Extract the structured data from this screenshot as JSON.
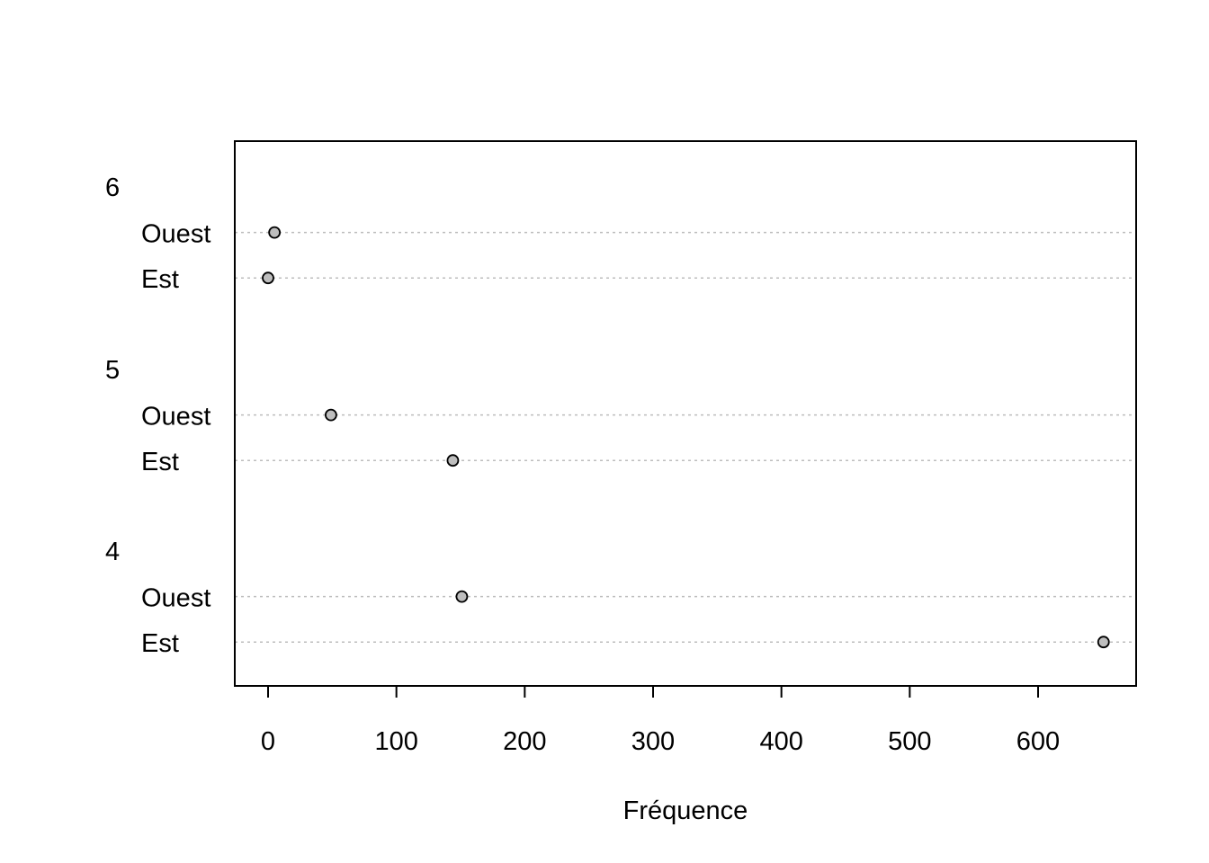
{
  "chart_data": {
    "type": "scatter",
    "xlabel": "Fréquence",
    "xlim": [
      -25,
      675
    ],
    "xticks": [
      0,
      100,
      200,
      300,
      400,
      500,
      600
    ],
    "grid": false,
    "point_color": "#bebebe",
    "groups": [
      {
        "label": "6",
        "rows": [
          {
            "label": "Ouest",
            "value": 5
          },
          {
            "label": "Est",
            "value": 0
          }
        ]
      },
      {
        "label": "5",
        "rows": [
          {
            "label": "Ouest",
            "value": 49
          },
          {
            "label": "Est",
            "value": 144
          }
        ]
      },
      {
        "label": "4",
        "rows": [
          {
            "label": "Ouest",
            "value": 151
          },
          {
            "label": "Est",
            "value": 651
          }
        ]
      }
    ]
  }
}
